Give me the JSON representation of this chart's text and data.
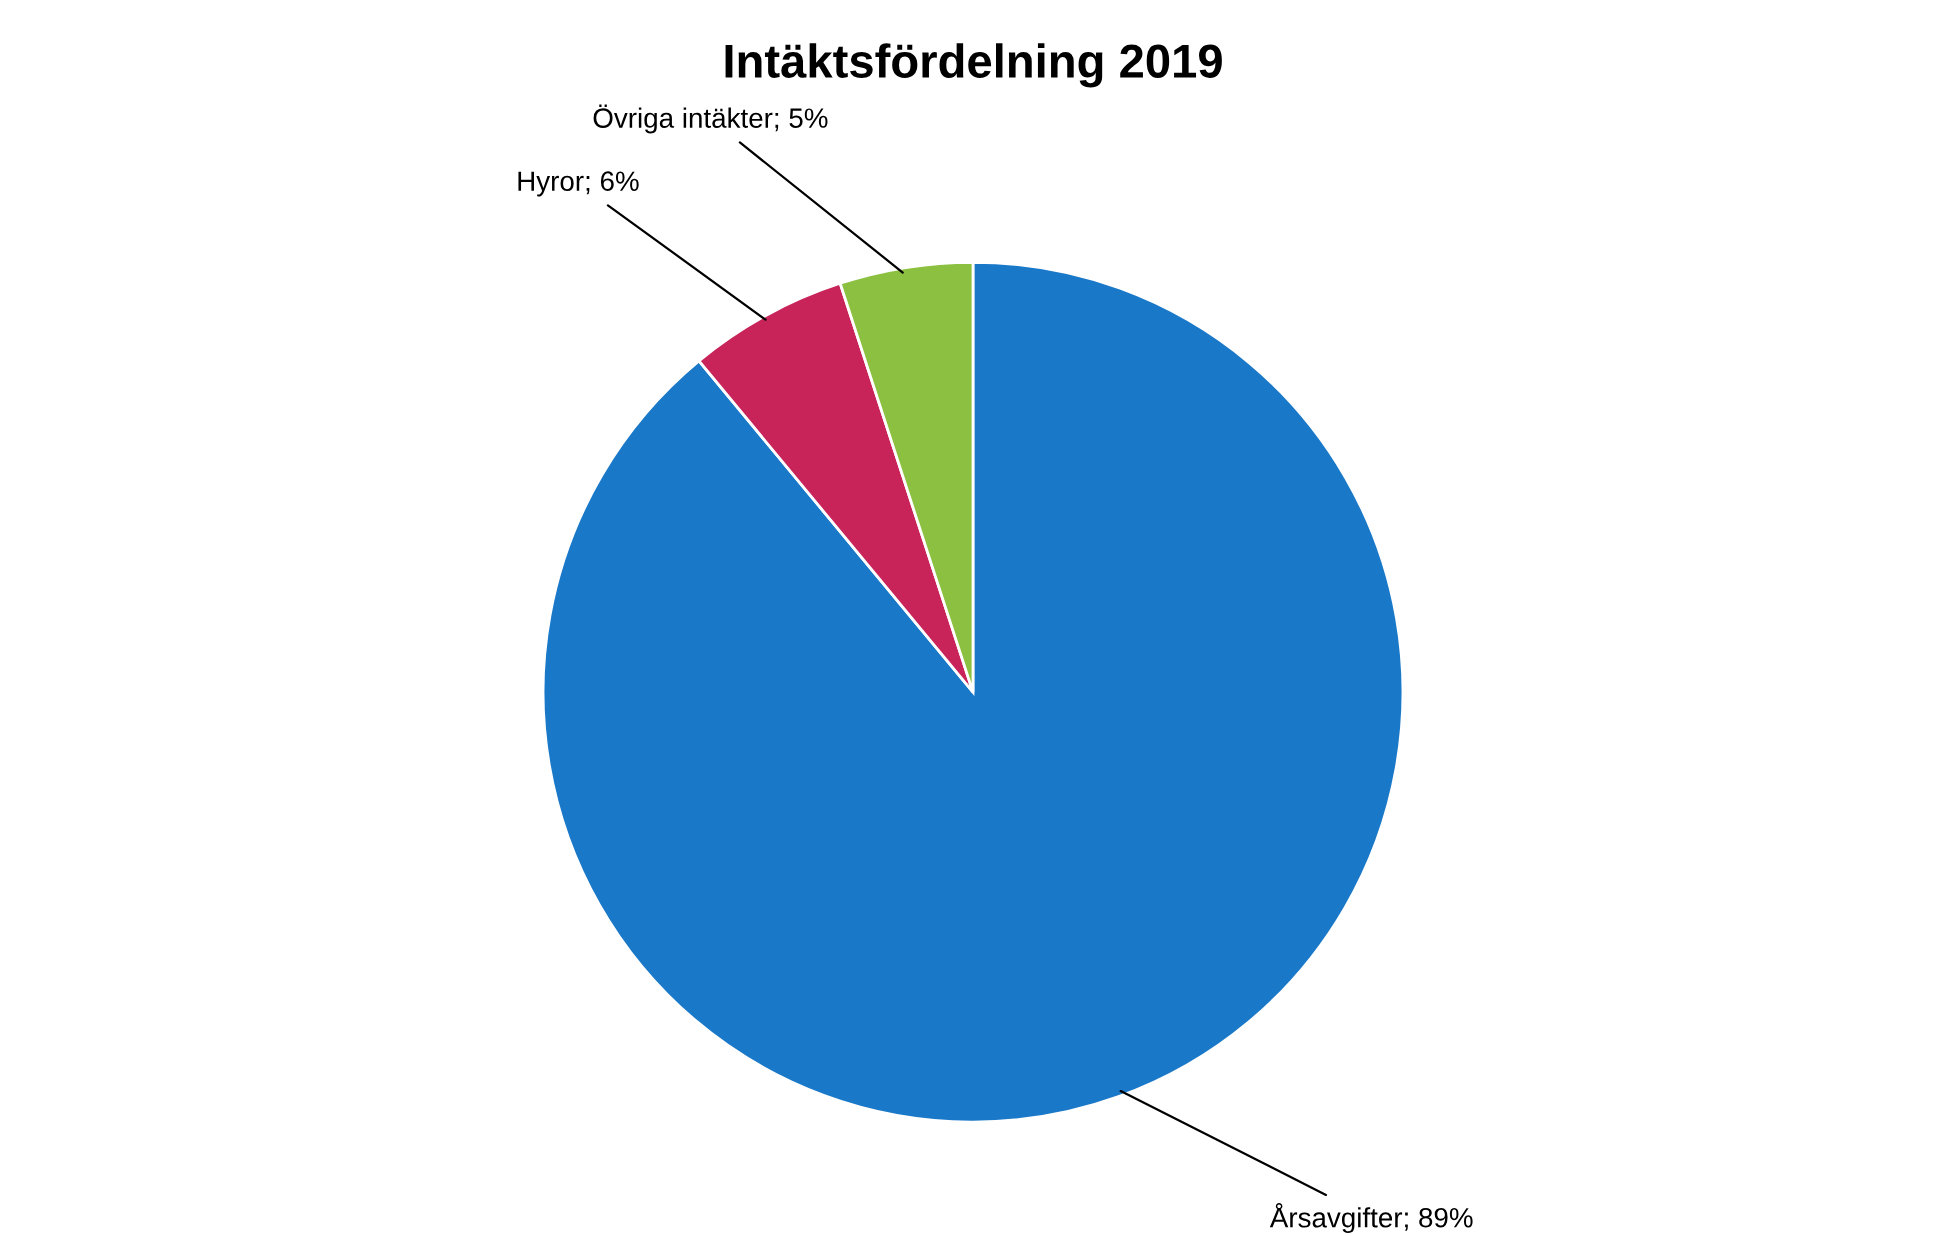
{
  "chart_data": {
    "type": "pie",
    "title": "Intäktsfördelning 2019",
    "categories": [
      "Årsavgifter",
      "Hyror",
      "Övriga intäkter"
    ],
    "values": [
      89,
      6,
      5
    ],
    "value_labels": [
      "89%",
      "6%",
      "5%"
    ],
    "colors": [
      "#1a78c8",
      "#c8245a",
      "#8cc040"
    ],
    "legend": false
  }
}
